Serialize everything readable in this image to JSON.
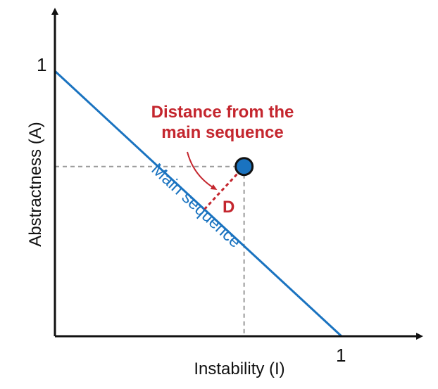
{
  "diagram": {
    "x_axis": {
      "label": "Instability (I)",
      "tick_label": "1"
    },
    "y_axis": {
      "label": "Abstractness (A)",
      "tick_label": "1"
    },
    "main_sequence": {
      "label": "Main sequence"
    },
    "component": {
      "instability": 0.66,
      "abstractness": 0.64
    },
    "callout": {
      "line1": "Distance from the",
      "line2": "main sequence"
    },
    "distance": {
      "label": "D"
    },
    "colors": {
      "axis": "#111111",
      "main_sequence": "#1a73c0",
      "callout": "#c4262e",
      "point_fill": "#1a73c0",
      "point_stroke": "#111111",
      "guide": "#9a9a9a"
    }
  }
}
